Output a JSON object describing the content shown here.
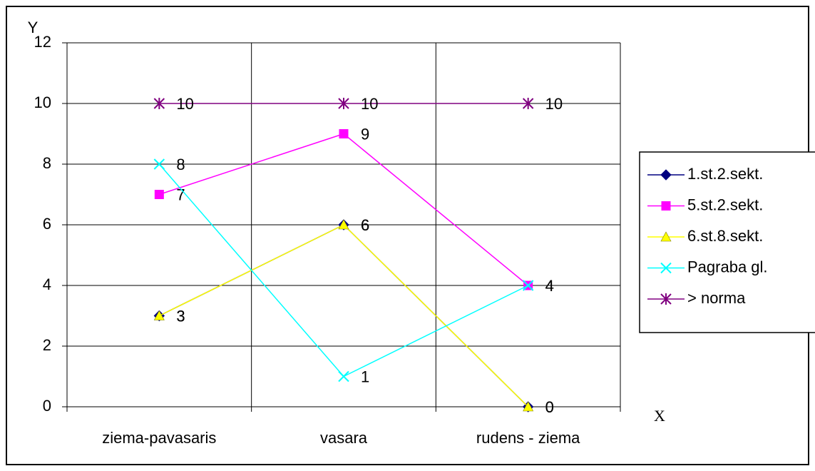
{
  "chart_data": {
    "type": "line",
    "categories": [
      "ziema-pavasaris",
      "vasara",
      "rudens - ziema"
    ],
    "series": [
      {
        "name": "1.st.2.sekt.",
        "color": "#000080",
        "marker": "diamond",
        "values": [
          3,
          6,
          0
        ]
      },
      {
        "name": "5.st.2.sekt.",
        "color": "#ff00ff",
        "marker": "square",
        "values": [
          7,
          9,
          4
        ]
      },
      {
        "name": "6.st.8.sekt.",
        "color": "#ffff00",
        "marker": "triangle",
        "values": [
          3,
          6,
          0
        ]
      },
      {
        "name": "Pagraba gl.",
        "color": "#00ffff",
        "marker": "x",
        "values": [
          8,
          1,
          4
        ]
      },
      {
        "name": "> norma",
        "color": "#800080",
        "marker": "star",
        "values": [
          10,
          10,
          10
        ]
      }
    ],
    "ylabel": "Y",
    "xlabel": "X",
    "ylim": [
      0,
      12
    ],
    "yticks": [
      0,
      2,
      4,
      6,
      8,
      10,
      12
    ],
    "grid": true,
    "legend": "right"
  }
}
